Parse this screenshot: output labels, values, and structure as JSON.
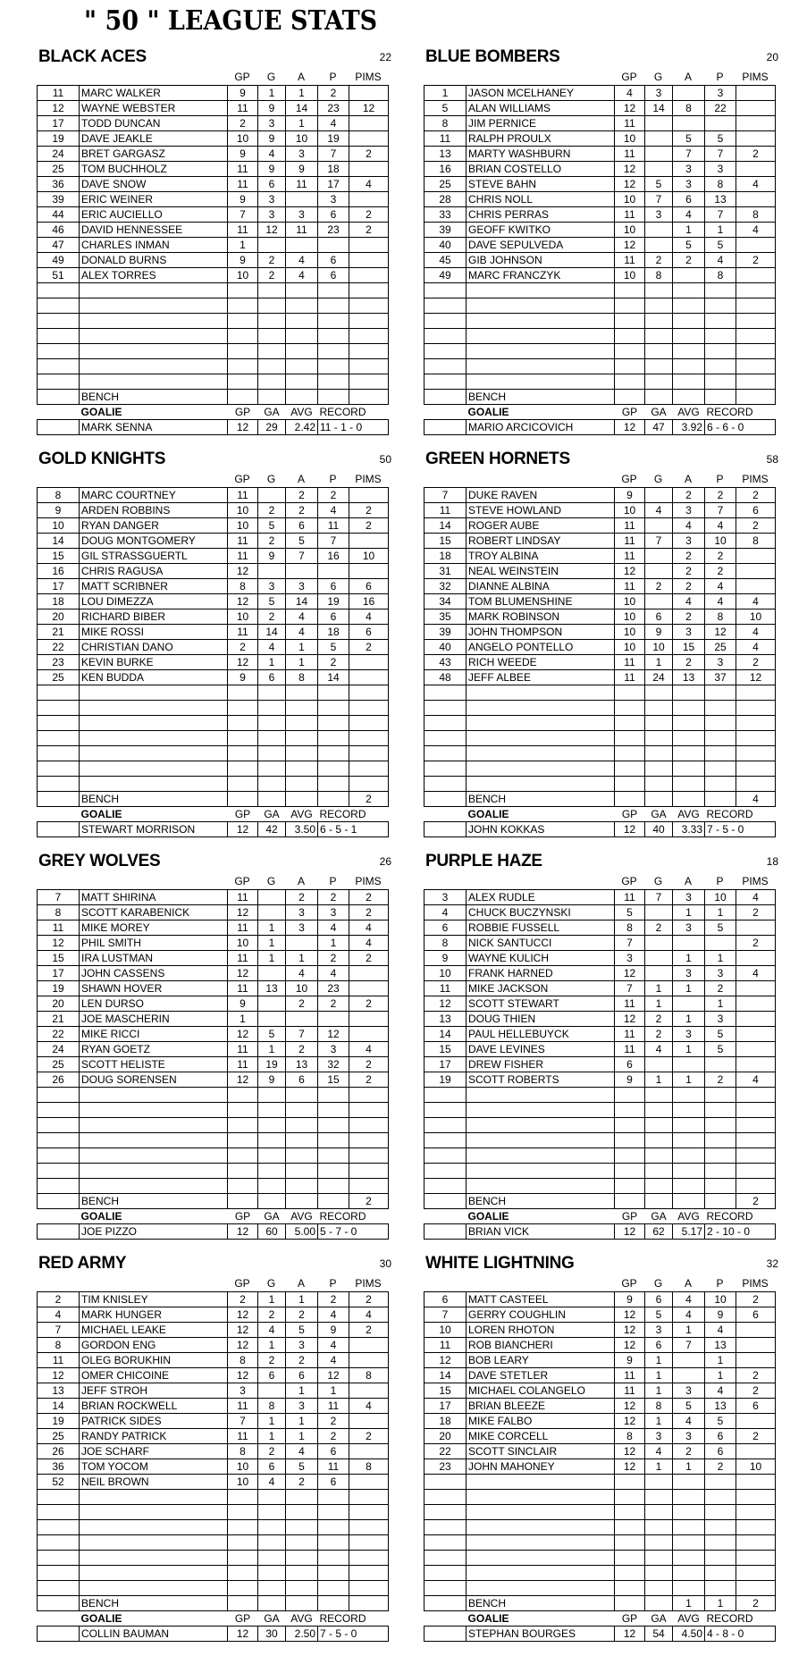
{
  "page_title": "\" 50 \" LEAGUE STATS",
  "labels": {
    "columns": [
      "GP",
      "G",
      "A",
      "P",
      "PIMS"
    ],
    "bench": "BENCH",
    "goalie_columns": [
      "GOALIE",
      "GP",
      "GA",
      "AVG",
      "RECORD"
    ]
  },
  "teams": [
    {
      "name": "BLACK ACES",
      "number": "22",
      "players": [
        [
          "11",
          "MARC WALKER",
          "9",
          "1",
          "1",
          "2",
          ""
        ],
        [
          "12",
          "WAYNE WEBSTER",
          "11",
          "9",
          "14",
          "23",
          "12"
        ],
        [
          "17",
          "TODD DUNCAN",
          "2",
          "3",
          "1",
          "4",
          ""
        ],
        [
          "19",
          "DAVE JEAKLE",
          "10",
          "9",
          "10",
          "19",
          ""
        ],
        [
          "24",
          "BRET GARGASZ",
          "9",
          "4",
          "3",
          "7",
          "2"
        ],
        [
          "25",
          "TOM BUCHHOLZ",
          "11",
          "9",
          "9",
          "18",
          ""
        ],
        [
          "36",
          "DAVE SNOW",
          "11",
          "6",
          "11",
          "17",
          "4"
        ],
        [
          "39",
          "ERIC WEINER",
          "9",
          "3",
          "",
          "3",
          ""
        ],
        [
          "44",
          "ERIC AUCIELLO",
          "7",
          "3",
          "3",
          "6",
          "2"
        ],
        [
          "46",
          "DAVID HENNESSEE",
          "11",
          "12",
          "11",
          "23",
          "2"
        ],
        [
          "47",
          "CHARLES INMAN",
          "1",
          "",
          "",
          "",
          ""
        ],
        [
          "49",
          "DONALD BURNS",
          "9",
          "2",
          "4",
          "6",
          ""
        ],
        [
          "51",
          "ALEX TORRES",
          "10",
          "2",
          "4",
          "6",
          ""
        ]
      ],
      "bench": [
        "",
        "",
        "",
        ""
      ],
      "goalie": {
        "name": "MARK SENNA",
        "gp": "12",
        "ga": "29",
        "avg": "2.42",
        "record": "11 - 1 - 0"
      }
    },
    {
      "name": "BLUE BOMBERS",
      "number": "20",
      "players": [
        [
          "1",
          "JASON MCELHANEY",
          "4",
          "3",
          "",
          "3",
          ""
        ],
        [
          "5",
          "ALAN WILLIAMS",
          "12",
          "14",
          "8",
          "22",
          ""
        ],
        [
          "8",
          "JIM PERNICE",
          "11",
          "",
          "",
          "",
          ""
        ],
        [
          "11",
          "RALPH PROULX",
          "10",
          "",
          "5",
          "5",
          ""
        ],
        [
          "13",
          "MARTY WASHBURN",
          "11",
          "",
          "7",
          "7",
          "2"
        ],
        [
          "16",
          "BRIAN COSTELLO",
          "12",
          "",
          "3",
          "3",
          ""
        ],
        [
          "25",
          "STEVE BAHN",
          "12",
          "5",
          "3",
          "8",
          "4"
        ],
        [
          "28",
          "CHRIS NOLL",
          "10",
          "7",
          "6",
          "13",
          ""
        ],
        [
          "33",
          "CHRIS PERRAS",
          "11",
          "3",
          "4",
          "7",
          "8"
        ],
        [
          "39",
          "GEOFF KWITKO",
          "10",
          "",
          "1",
          "1",
          "4"
        ],
        [
          "40",
          "DAVE SEPULVEDA",
          "12",
          "",
          "5",
          "5",
          ""
        ],
        [
          "45",
          "GIB JOHNSON",
          "11",
          "2",
          "2",
          "4",
          "2"
        ],
        [
          "49",
          "MARC FRANCZYK",
          "10",
          "8",
          "",
          "8",
          ""
        ]
      ],
      "bench": [
        "",
        "",
        "",
        ""
      ],
      "goalie": {
        "name": "MARIO ARCICOVICH",
        "gp": "12",
        "ga": "47",
        "avg": "3.92",
        "record": "6 - 6 - 0"
      }
    },
    {
      "name": "GOLD KNIGHTS",
      "number": "50",
      "players": [
        [
          "8",
          "MARC COURTNEY",
          "11",
          "",
          "2",
          "2",
          ""
        ],
        [
          "9",
          "ARDEN ROBBINS",
          "10",
          "2",
          "2",
          "4",
          "2"
        ],
        [
          "10",
          "RYAN DANGER",
          "10",
          "5",
          "6",
          "11",
          "2"
        ],
        [
          "14",
          "DOUG MONTGOMERY",
          "11",
          "2",
          "5",
          "7",
          ""
        ],
        [
          "15",
          "GIL STRASSGUERTL",
          "11",
          "9",
          "7",
          "16",
          "10"
        ],
        [
          "16",
          "CHRIS RAGUSA",
          "12",
          "",
          "",
          "",
          ""
        ],
        [
          "17",
          "MATT SCRIBNER",
          "8",
          "3",
          "3",
          "6",
          "6"
        ],
        [
          "18",
          "LOU DIMEZZA",
          "12",
          "5",
          "14",
          "19",
          "16"
        ],
        [
          "20",
          "RICHARD BIBER",
          "10",
          "2",
          "4",
          "6",
          "4"
        ],
        [
          "21",
          "MIKE ROSSI",
          "11",
          "14",
          "4",
          "18",
          "6"
        ],
        [
          "22",
          "CHRISTIAN DANO",
          "2",
          "4",
          "1",
          "5",
          "2"
        ],
        [
          "23",
          "KEVIN BURKE",
          "12",
          "1",
          "1",
          "2",
          ""
        ],
        [
          "25",
          "KEN BUDDA",
          "9",
          "6",
          "8",
          "14",
          ""
        ]
      ],
      "bench": [
        "",
        "",
        "",
        "2"
      ],
      "goalie": {
        "name": "STEWART MORRISON",
        "gp": "12",
        "ga": "42",
        "avg": "3.50",
        "record": "6 - 5 - 1"
      }
    },
    {
      "name": "GREEN HORNETS",
      "number": "58",
      "players": [
        [
          "7",
          "DUKE RAVEN",
          "9",
          "",
          "2",
          "2",
          "2"
        ],
        [
          "11",
          "STEVE HOWLAND",
          "10",
          "4",
          "3",
          "7",
          "6"
        ],
        [
          "14",
          "ROGER AUBE",
          "11",
          "",
          "4",
          "4",
          "2"
        ],
        [
          "15",
          "ROBERT LINDSAY",
          "11",
          "7",
          "3",
          "10",
          "8"
        ],
        [
          "18",
          "TROY ALBINA",
          "11",
          "",
          "2",
          "2",
          ""
        ],
        [
          "31",
          "NEAL WEINSTEIN",
          "12",
          "",
          "2",
          "2",
          ""
        ],
        [
          "32",
          "DIANNE ALBINA",
          "11",
          "2",
          "2",
          "4",
          ""
        ],
        [
          "34",
          "TOM BLUMENSHINE",
          "10",
          "",
          "4",
          "4",
          "4"
        ],
        [
          "35",
          "MARK ROBINSON",
          "10",
          "6",
          "2",
          "8",
          "10"
        ],
        [
          "39",
          "JOHN THOMPSON",
          "10",
          "9",
          "3",
          "12",
          "4"
        ],
        [
          "40",
          "ANGELO PONTELLO",
          "10",
          "10",
          "15",
          "25",
          "4"
        ],
        [
          "43",
          "RICH WEEDE",
          "11",
          "1",
          "2",
          "3",
          "2"
        ],
        [
          "48",
          "JEFF ALBEE",
          "11",
          "24",
          "13",
          "37",
          "12"
        ]
      ],
      "bench": [
        "",
        "",
        "",
        "4"
      ],
      "goalie": {
        "name": "JOHN KOKKAS",
        "gp": "12",
        "ga": "40",
        "avg": "3.33",
        "record": "7 - 5 - 0"
      }
    },
    {
      "name": "GREY WOLVES",
      "number": "26",
      "players": [
        [
          "7",
          "MATT SHIRINA",
          "11",
          "",
          "2",
          "2",
          "2"
        ],
        [
          "8",
          "SCOTT KARABENICK",
          "12",
          "",
          "3",
          "3",
          "2"
        ],
        [
          "11",
          "MIKE MOREY",
          "11",
          "1",
          "3",
          "4",
          "4"
        ],
        [
          "12",
          "PHIL SMITH",
          "10",
          "1",
          "",
          "1",
          "4"
        ],
        [
          "15",
          "IRA LUSTMAN",
          "11",
          "1",
          "1",
          "2",
          "2"
        ],
        [
          "17",
          "JOHN CASSENS",
          "12",
          "",
          "4",
          "4",
          ""
        ],
        [
          "19",
          "SHAWN HOVER",
          "11",
          "13",
          "10",
          "23",
          ""
        ],
        [
          "20",
          "LEN DURSO",
          "9",
          "",
          "2",
          "2",
          "2"
        ],
        [
          "21",
          "JOE MASCHERIN",
          "1",
          "",
          "",
          "",
          ""
        ],
        [
          "22",
          "MIKE RICCI",
          "12",
          "5",
          "7",
          "12",
          ""
        ],
        [
          "24",
          "RYAN GOETZ",
          "11",
          "1",
          "2",
          "3",
          "4"
        ],
        [
          "25",
          "SCOTT HELISTE",
          "11",
          "19",
          "13",
          "32",
          "2"
        ],
        [
          "26",
          "DOUG SORENSEN",
          "12",
          "9",
          "6",
          "15",
          "2"
        ]
      ],
      "bench": [
        "",
        "",
        "",
        "2"
      ],
      "goalie": {
        "name": "JOE PIZZO",
        "gp": "12",
        "ga": "60",
        "avg": "5.00",
        "record": "5 - 7 - 0"
      }
    },
    {
      "name": "PURPLE HAZE",
      "number": "18",
      "players": [
        [
          "3",
          "ALEX RUDLE",
          "11",
          "7",
          "3",
          "10",
          "4"
        ],
        [
          "4",
          "CHUCK BUCZYNSKI",
          "5",
          "",
          "1",
          "1",
          "2"
        ],
        [
          "6",
          "ROBBIE FUSSELL",
          "8",
          "2",
          "3",
          "5",
          ""
        ],
        [
          "8",
          "NICK SANTUCCI",
          "7",
          "",
          "",
          "",
          "2"
        ],
        [
          "9",
          "WAYNE KULICH",
          "3",
          "",
          "1",
          "1",
          ""
        ],
        [
          "10",
          "FRANK HARNED",
          "12",
          "",
          "3",
          "3",
          "4"
        ],
        [
          "11",
          "MIKE JACKSON",
          "7",
          "1",
          "1",
          "2",
          ""
        ],
        [
          "12",
          "SCOTT STEWART",
          "11",
          "1",
          "",
          "1",
          ""
        ],
        [
          "13",
          "DOUG THIEN",
          "12",
          "2",
          "1",
          "3",
          ""
        ],
        [
          "14",
          "PAUL HELLEBUYCK",
          "11",
          "2",
          "3",
          "5",
          ""
        ],
        [
          "15",
          "DAVE LEVINES",
          "11",
          "4",
          "1",
          "5",
          ""
        ],
        [
          "17",
          "DREW FISHER",
          "6",
          "",
          "",
          "",
          ""
        ],
        [
          "19",
          "SCOTT ROBERTS",
          "9",
          "1",
          "1",
          "2",
          "4"
        ]
      ],
      "bench": [
        "",
        "",
        "",
        "2"
      ],
      "goalie": {
        "name": "BRIAN VICK",
        "gp": "12",
        "ga": "62",
        "avg": "5.17",
        "record": "2 - 10 - 0"
      }
    },
    {
      "name": "RED ARMY",
      "number": "30",
      "players": [
        [
          "2",
          "TIM KNISLEY",
          "2",
          "1",
          "1",
          "2",
          "2"
        ],
        [
          "4",
          "MARK HUNGER",
          "12",
          "2",
          "2",
          "4",
          "4"
        ],
        [
          "7",
          "MICHAEL LEAKE",
          "12",
          "4",
          "5",
          "9",
          "2"
        ],
        [
          "8",
          "GORDON ENG",
          "12",
          "1",
          "3",
          "4",
          ""
        ],
        [
          "11",
          "OLEG BORUKHIN",
          "8",
          "2",
          "2",
          "4",
          ""
        ],
        [
          "12",
          "OMER CHICOINE",
          "12",
          "6",
          "6",
          "12",
          "8"
        ],
        [
          "13",
          "JEFF STROH",
          "3",
          "",
          "1",
          "1",
          ""
        ],
        [
          "14",
          "BRIAN ROCKWELL",
          "11",
          "8",
          "3",
          "11",
          "4"
        ],
        [
          "19",
          "PATRICK SIDES",
          "7",
          "1",
          "1",
          "2",
          ""
        ],
        [
          "25",
          "RANDY PATRICK",
          "11",
          "1",
          "1",
          "2",
          "2"
        ],
        [
          "26",
          "JOE SCHARF",
          "8",
          "2",
          "4",
          "6",
          ""
        ],
        [
          "36",
          "TOM YOCOM",
          "10",
          "6",
          "5",
          "11",
          "8"
        ],
        [
          "52",
          "NEIL BROWN",
          "10",
          "4",
          "2",
          "6",
          ""
        ]
      ],
      "bench": [
        "",
        "",
        "",
        ""
      ],
      "goalie": {
        "name": "COLLIN BAUMAN",
        "gp": "12",
        "ga": "30",
        "avg": "2.50",
        "record": "7 - 5 - 0"
      }
    },
    {
      "name": "WHITE LIGHTNING",
      "number": "32",
      "players": [
        [
          "6",
          "MATT CASTEEL",
          "9",
          "6",
          "4",
          "10",
          "2"
        ],
        [
          "7",
          "GERRY COUGHLIN",
          "12",
          "5",
          "4",
          "9",
          "6"
        ],
        [
          "10",
          "LOREN RHOTON",
          "12",
          "3",
          "1",
          "4",
          ""
        ],
        [
          "11",
          "ROB BIANCHERI",
          "12",
          "6",
          "7",
          "13",
          ""
        ],
        [
          "12",
          "BOB LEARY",
          "9",
          "1",
          "",
          "1",
          ""
        ],
        [
          "14",
          "DAVE STETLER",
          "11",
          "1",
          "",
          "1",
          "2"
        ],
        [
          "15",
          "MICHAEL COLANGELO",
          "11",
          "1",
          "3",
          "4",
          "2"
        ],
        [
          "17",
          "BRIAN BLEEZE",
          "12",
          "8",
          "5",
          "13",
          "6"
        ],
        [
          "18",
          "MIKE FALBO",
          "12",
          "1",
          "4",
          "5",
          ""
        ],
        [
          "20",
          "MIKE CORCELL",
          "8",
          "3",
          "3",
          "6",
          "2"
        ],
        [
          "22",
          "SCOTT SINCLAIR",
          "12",
          "4",
          "2",
          "6",
          ""
        ],
        [
          "23",
          "JOHN MAHONEY",
          "12",
          "1",
          "1",
          "2",
          "10"
        ]
      ],
      "bench": [
        "",
        "1",
        "1",
        "2"
      ],
      "goalie": {
        "name": "STEPHAN BOURGES",
        "gp": "12",
        "ga": "54",
        "avg": "4.50",
        "record": "4 - 8 - 0"
      }
    }
  ]
}
